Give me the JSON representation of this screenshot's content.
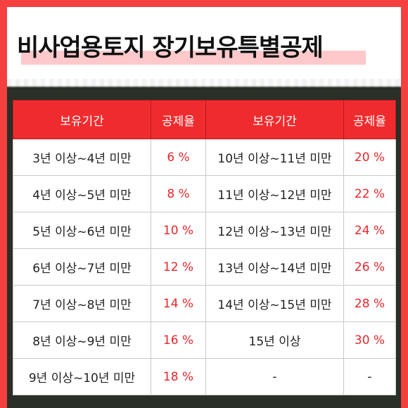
{
  "title": "비사업용토지 장기보유특별공제",
  "table": {
    "headers": [
      "보유기간",
      "공제율",
      "보유기간",
      "공제율"
    ],
    "rows": [
      [
        "3년 이상~4년 미만",
        "6 %",
        "10년 이상~11년 미만",
        "20 %"
      ],
      [
        "4년 이상~5년 미만",
        "8 %",
        "11년 이상~12년 미만",
        "22 %"
      ],
      [
        "5년 이상~6년 미만",
        "10 %",
        "12년 이상~13년 미만",
        "24 %"
      ],
      [
        "6년 이상~7년 미만",
        "12 %",
        "13년 이상~14년 미만",
        "26 %"
      ],
      [
        "7년 이상~8년 미만",
        "14 %",
        "14년 이상~15년 미만",
        "28 %"
      ],
      [
        "8년 이상~9년 미만",
        "16 %",
        "15년 이상",
        "30 %"
      ],
      [
        "9년 이상~10년 미만",
        "18 %",
        "-",
        "-"
      ]
    ]
  },
  "colors": {
    "frame": "#f4413f",
    "header": "#f02b2e",
    "rate_text": "#e8262a",
    "title_highlight": "#ffc9cc"
  }
}
